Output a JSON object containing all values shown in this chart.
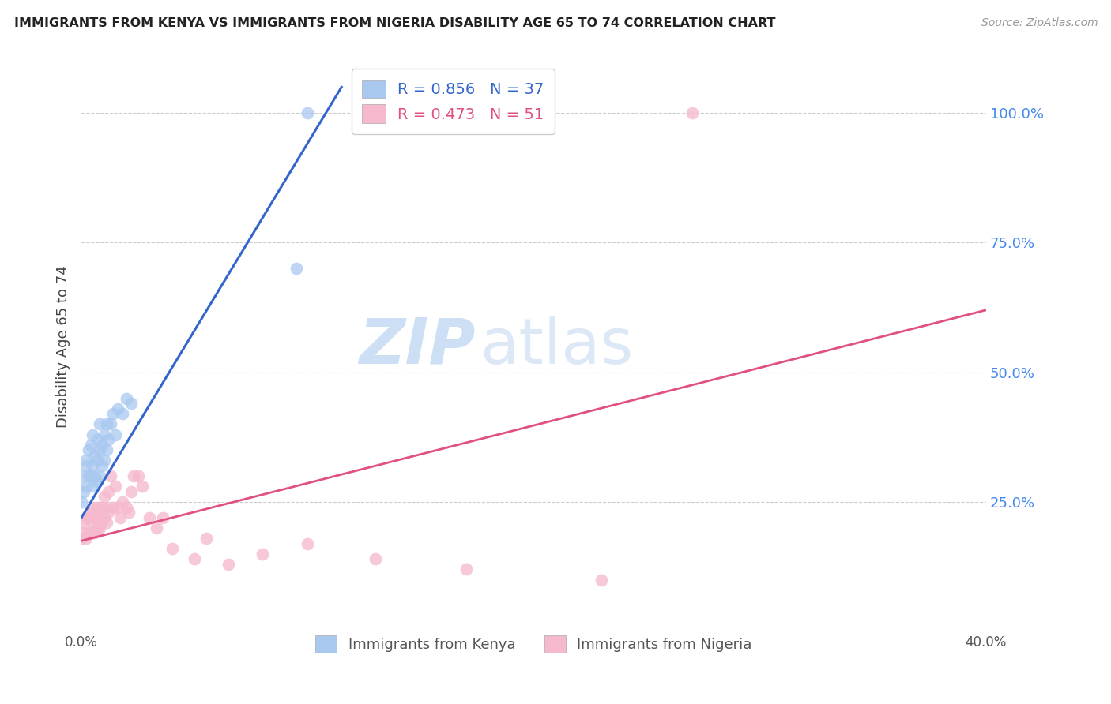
{
  "title": "IMMIGRANTS FROM KENYA VS IMMIGRANTS FROM NIGERIA DISABILITY AGE 65 TO 74 CORRELATION CHART",
  "source": "Source: ZipAtlas.com",
  "ylabel": "Disability Age 65 to 74",
  "kenya_R": 0.856,
  "kenya_N": 37,
  "nigeria_R": 0.473,
  "nigeria_N": 51,
  "kenya_color": "#a8c8f0",
  "nigeria_color": "#f5b8cc",
  "kenya_line_color": "#3366cc",
  "nigeria_line_color": "#e05080",
  "background_color": "#ffffff",
  "grid_color": "#cccccc",
  "xlim": [
    0.0,
    0.4
  ],
  "ylim": [
    0.0,
    1.1
  ],
  "kenya_x": [
    0.0,
    0.001,
    0.001,
    0.002,
    0.002,
    0.002,
    0.003,
    0.003,
    0.004,
    0.004,
    0.005,
    0.005,
    0.005,
    0.006,
    0.006,
    0.007,
    0.007,
    0.007,
    0.008,
    0.008,
    0.008,
    0.009,
    0.009,
    0.01,
    0.01,
    0.011,
    0.011,
    0.012,
    0.013,
    0.014,
    0.015,
    0.016,
    0.018,
    0.02,
    0.022,
    0.095,
    0.1
  ],
  "kenya_y": [
    0.25,
    0.27,
    0.3,
    0.28,
    0.32,
    0.33,
    0.3,
    0.35,
    0.3,
    0.36,
    0.28,
    0.32,
    0.38,
    0.3,
    0.34,
    0.29,
    0.33,
    0.37,
    0.3,
    0.35,
    0.4,
    0.32,
    0.36,
    0.33,
    0.38,
    0.35,
    0.4,
    0.37,
    0.4,
    0.42,
    0.38,
    0.43,
    0.42,
    0.45,
    0.44,
    0.7,
    1.0
  ],
  "nigeria_x": [
    0.0,
    0.001,
    0.001,
    0.002,
    0.002,
    0.003,
    0.003,
    0.004,
    0.004,
    0.005,
    0.005,
    0.005,
    0.006,
    0.006,
    0.007,
    0.007,
    0.008,
    0.008,
    0.009,
    0.009,
    0.01,
    0.01,
    0.011,
    0.011,
    0.012,
    0.012,
    0.013,
    0.014,
    0.015,
    0.016,
    0.017,
    0.018,
    0.02,
    0.021,
    0.022,
    0.023,
    0.025,
    0.027,
    0.03,
    0.033,
    0.036,
    0.04,
    0.05,
    0.055,
    0.065,
    0.08,
    0.1,
    0.13,
    0.17,
    0.23,
    0.27
  ],
  "nigeria_y": [
    0.18,
    0.19,
    0.21,
    0.18,
    0.22,
    0.19,
    0.22,
    0.19,
    0.23,
    0.19,
    0.21,
    0.24,
    0.19,
    0.22,
    0.2,
    0.24,
    0.2,
    0.23,
    0.21,
    0.24,
    0.22,
    0.26,
    0.21,
    0.24,
    0.23,
    0.27,
    0.3,
    0.24,
    0.28,
    0.24,
    0.22,
    0.25,
    0.24,
    0.23,
    0.27,
    0.3,
    0.3,
    0.28,
    0.22,
    0.2,
    0.22,
    0.16,
    0.14,
    0.18,
    0.13,
    0.15,
    0.17,
    0.14,
    0.12,
    0.1,
    1.0
  ],
  "watermark_zip": "ZIP",
  "watermark_atlas": "atlas",
  "kenya_line_x": [
    0.0,
    0.115
  ],
  "kenya_line_y": [
    0.22,
    1.05
  ],
  "nigeria_line_x": [
    0.0,
    0.4
  ],
  "nigeria_line_y": [
    0.175,
    0.62
  ]
}
